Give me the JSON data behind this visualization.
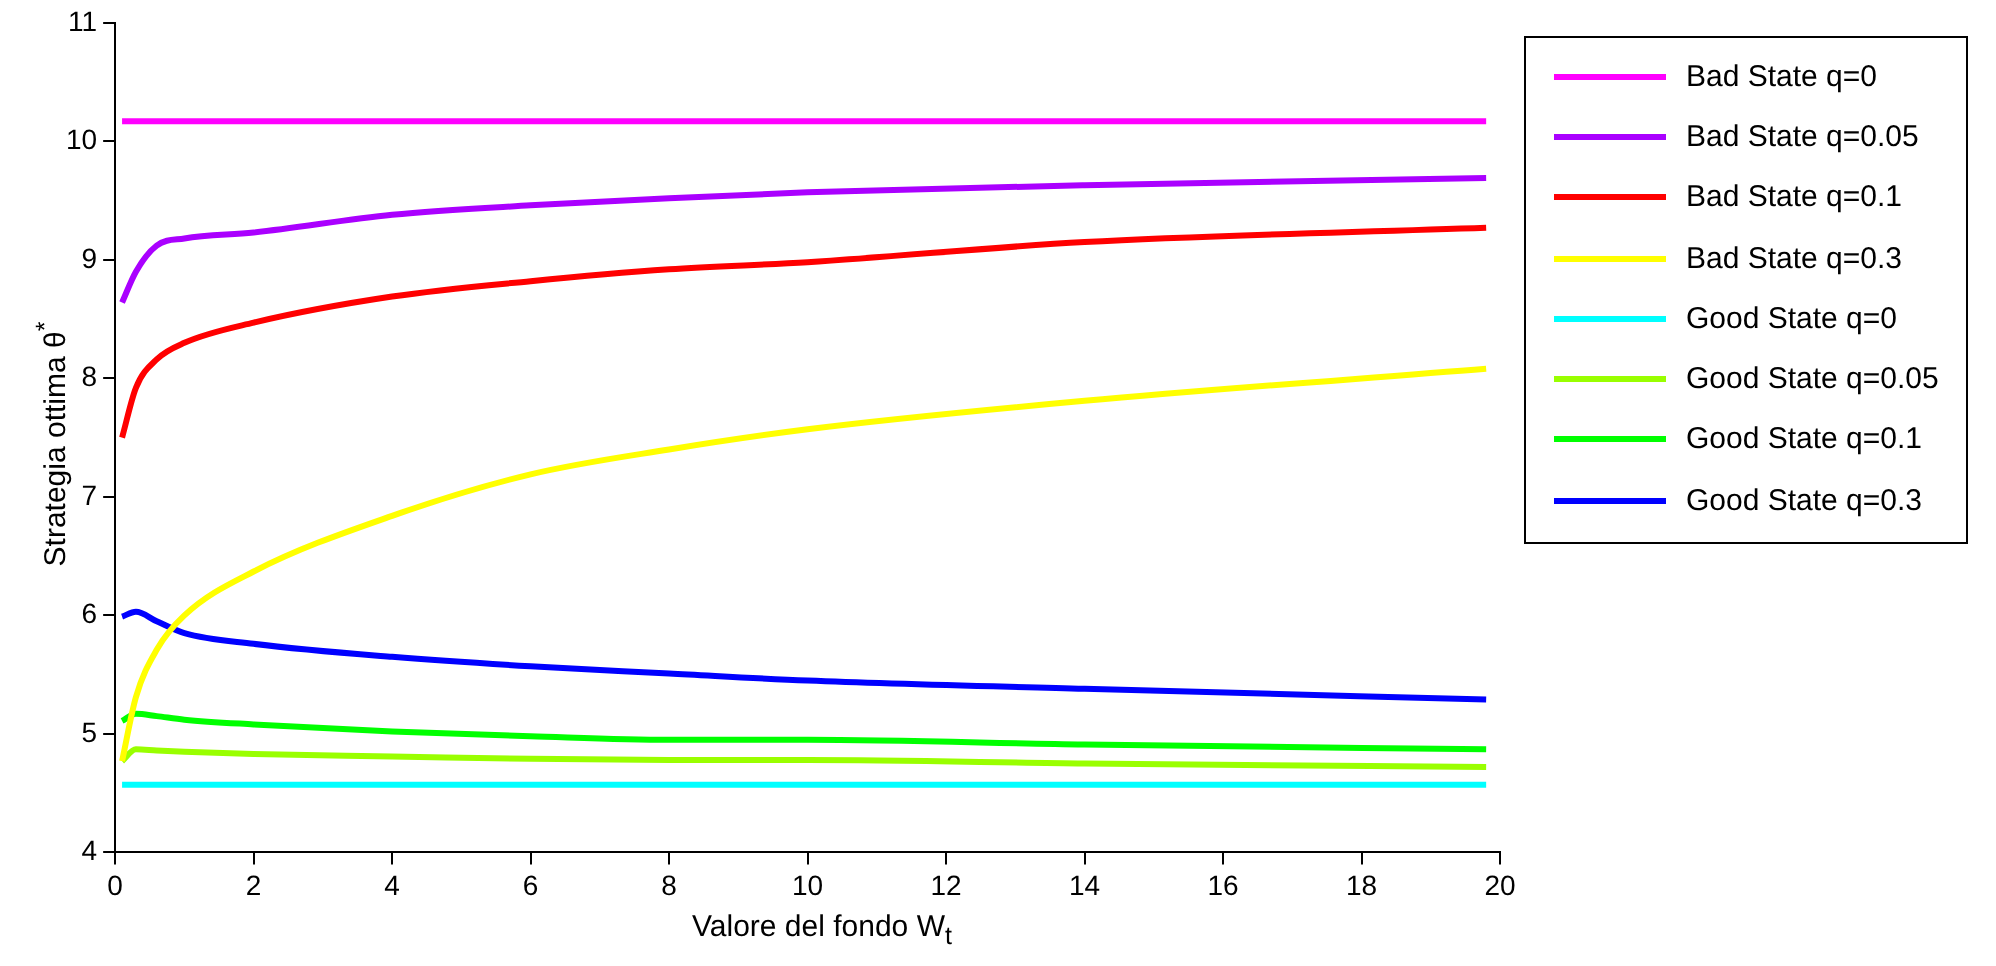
{
  "chart_data": {
    "type": "line",
    "xlabel": "Valore del fondo W$_{t}$",
    "ylabel": "Strategia ottima θ$^{*}$",
    "xlim": [
      0,
      20
    ],
    "xticks": [
      0,
      2,
      4,
      6,
      8,
      10,
      12,
      14,
      16,
      18,
      20
    ],
    "ylim": [
      4,
      11
    ],
    "yticks": [
      4,
      5,
      6,
      7,
      8,
      9,
      10,
      11
    ],
    "grid": false,
    "legend": "top right",
    "marker": "none",
    "line_style": "solid",
    "x": [
      0.1,
      0.3,
      0.6,
      1,
      2,
      4,
      6,
      8,
      10,
      14,
      19.8
    ],
    "series": [
      {
        "name": "Bad State q=0",
        "color": "#ff00ff",
        "values": [
          10.17,
          10.17,
          10.17,
          10.17,
          10.17,
          10.17,
          10.17,
          10.17,
          10.17,
          10.17,
          10.17
        ]
      },
      {
        "name": "Bad State q=0.05",
        "color": "#aa00ff",
        "values": [
          8.64,
          8.9,
          9.12,
          9.18,
          9.23,
          9.38,
          9.46,
          9.52,
          9.57,
          9.63,
          9.69
        ]
      },
      {
        "name": "Bad State q=0.1",
        "color": "#ff0000",
        "values": [
          7.5,
          7.92,
          8.16,
          8.3,
          8.47,
          8.69,
          8.82,
          8.92,
          8.98,
          9.15,
          9.27
        ]
      },
      {
        "name": "Bad State q=0.3",
        "color": "#ffff00",
        "values": [
          4.77,
          5.31,
          5.71,
          6.0,
          6.37,
          6.84,
          7.19,
          7.4,
          7.57,
          7.81,
          8.08
        ]
      },
      {
        "name": "Good State q=0",
        "color": "#00ffff",
        "values": [
          4.57,
          4.57,
          4.57,
          4.57,
          4.57,
          4.57,
          4.57,
          4.57,
          4.57,
          4.57,
          4.57
        ]
      },
      {
        "name": "Good State q=0.05",
        "color": "#99ff00",
        "values": [
          4.77,
          4.87,
          4.86,
          4.85,
          4.83,
          4.81,
          4.79,
          4.78,
          4.78,
          4.75,
          4.72
        ]
      },
      {
        "name": "Good State q=0.1",
        "color": "#00ff00",
        "values": [
          5.11,
          5.17,
          5.15,
          5.12,
          5.08,
          5.02,
          4.98,
          4.95,
          4.95,
          4.91,
          4.87
        ]
      },
      {
        "name": "Good State q=0.3",
        "color": "#0000ff",
        "values": [
          5.99,
          6.03,
          5.95,
          5.85,
          5.76,
          5.65,
          5.57,
          5.51,
          5.45,
          5.38,
          5.29
        ]
      }
    ]
  }
}
